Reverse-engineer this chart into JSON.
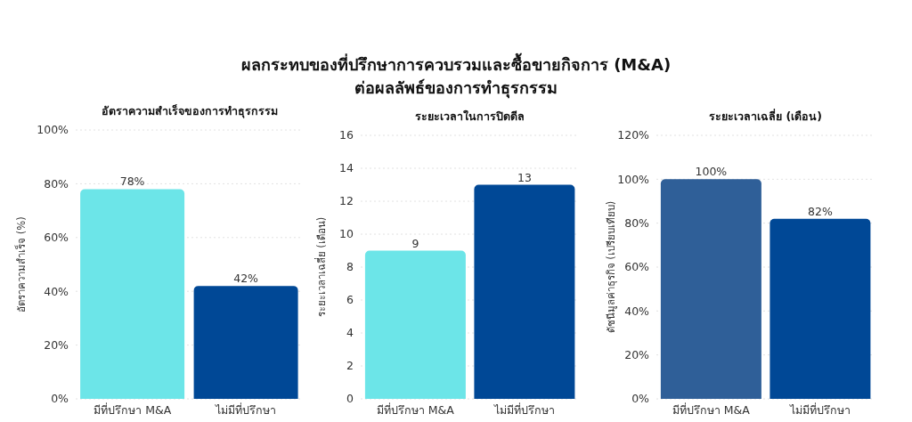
{
  "chart_data": [
    {
      "type": "bar",
      "title": "ผลกระทบของที่ปรึกษาการควบรวมและซื้อขายกิจการ (M&A)\nต่อผลลัพธ์ของการทำธุรกรรม",
      "subtitle": "อัตราความสำเร็จของการทำธุรกรรม",
      "ylabel": "อัตราความสำเร็จ (%)",
      "categories": [
        "มีที่ปรึกษา M&A",
        "ไม่มีที่ปรึกษา"
      ],
      "values": [
        78,
        42
      ],
      "colors": [
        "#6ce5e8",
        "#004896"
      ],
      "value_labels": [
        "78%",
        "42%"
      ],
      "ylim": [
        0,
        100
      ],
      "yticks": [
        {
          "value": 0,
          "label": "0%"
        },
        {
          "value": 20,
          "label": "20%"
        },
        {
          "value": 40,
          "label": "40%"
        },
        {
          "value": 60,
          "label": "60%"
        },
        {
          "value": 80,
          "label": "80%"
        },
        {
          "value": 100,
          "label": "100%"
        }
      ],
      "grid": "y"
    },
    {
      "type": "bar",
      "subtitle": "ระยะเวลาในการปิดดีล",
      "ylabel": "ระยะเวลาเฉลี่ย (เดือน)",
      "categories": [
        "มีที่ปรึกษา M&A",
        "ไม่มีที่ปรึกษา"
      ],
      "values": [
        9,
        13
      ],
      "colors": [
        "#6ce5e8",
        "#004896"
      ],
      "data_labels": true,
      "ylim": [
        0,
        16
      ],
      "yticks": [
        0,
        2,
        4,
        6,
        8,
        10,
        12,
        14,
        16
      ],
      "grid": "y"
    },
    {
      "type": "bar",
      "subtitle": "ระยะเวลาเฉลี่ย (เดือน)",
      "ylabel": "ดัชนีมูลค่าธุรกิจ (เปรียบเทียบ)",
      "categories": [
        "มีที่ปรึกษา M&A",
        "ไม่มีที่ปรึกษา"
      ],
      "values": [
        100,
        82
      ],
      "colors": [
        "#2f5f98",
        "#004896"
      ],
      "value_labels": [
        "100%",
        "82%"
      ],
      "ylim": [
        0,
        120
      ],
      "yticks": [
        {
          "value": 0,
          "label": "0%"
        },
        {
          "value": 20,
          "label": "20%"
        },
        {
          "value": 40,
          "label": "40%"
        },
        {
          "value": 60,
          "label": "60%"
        },
        {
          "value": 80,
          "label": "80%"
        },
        {
          "value": 100,
          "label": "100%"
        },
        {
          "value": 120,
          "label": "120%"
        }
      ],
      "grid": "y"
    }
  ]
}
